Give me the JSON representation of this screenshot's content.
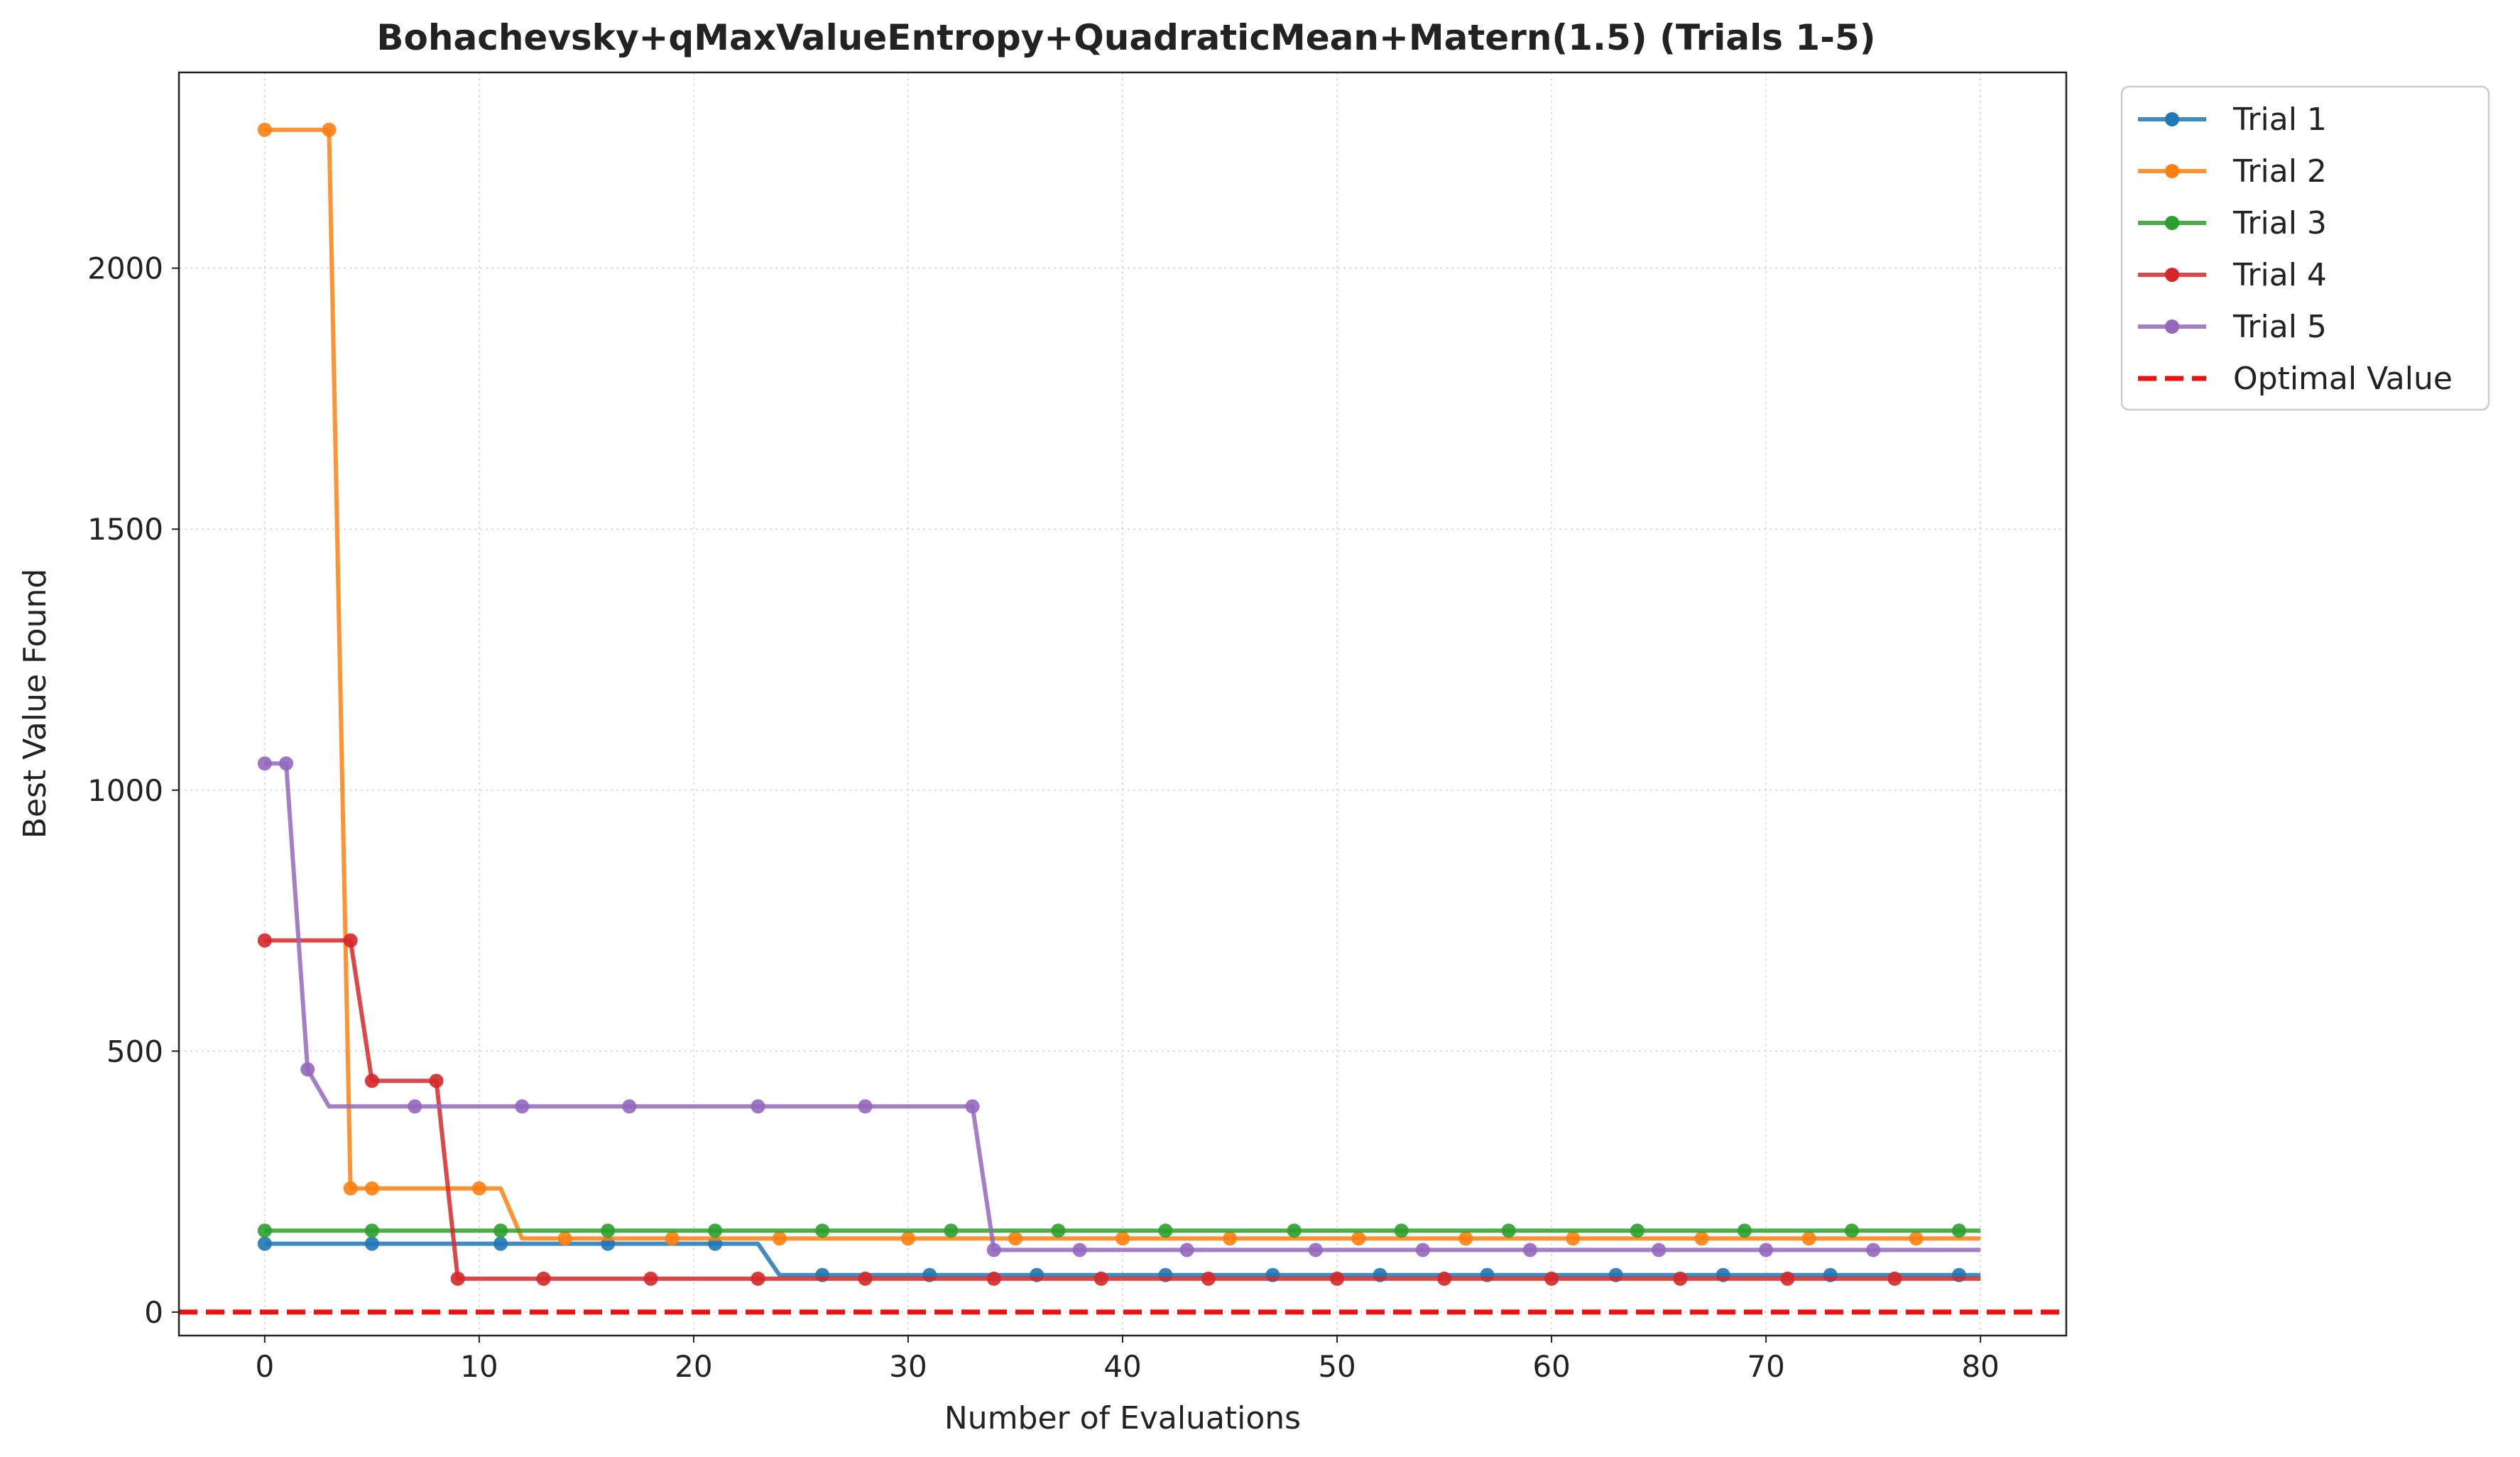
{
  "chart_data": {
    "type": "line",
    "title": "Bohachevsky+qMaxValueEntropy+QuadraticMean+Matern(1.5) (Trials 1-5)",
    "xlabel": "Number of Evaluations",
    "ylabel": "Best Value Found",
    "xlim": [
      -4,
      84
    ],
    "ylim": [
      -45,
      2375
    ],
    "xticks": [
      0,
      10,
      20,
      30,
      40,
      50,
      60,
      70,
      80
    ],
    "yticks": [
      0,
      500,
      1000,
      1500,
      2000
    ],
    "grid": true,
    "legend_position": "outside top-right",
    "series": [
      {
        "name": "Trial 1",
        "color": "#1f77b4",
        "steps": [
          [
            0,
            131
          ],
          [
            23,
            131
          ],
          [
            24,
            71
          ],
          [
            80,
            71
          ]
        ],
        "markers": [
          0,
          5,
          11,
          16,
          21,
          26,
          31,
          36,
          42,
          47,
          52,
          57,
          63,
          68,
          73,
          79
        ]
      },
      {
        "name": "Trial 2",
        "color": "#ff7f0e",
        "steps": [
          [
            0,
            2265
          ],
          [
            3,
            2265
          ],
          [
            4,
            237
          ],
          [
            11,
            237
          ],
          [
            12,
            141
          ],
          [
            80,
            141
          ]
        ],
        "markers": [
          0,
          3,
          4,
          5,
          10,
          14,
          19,
          24,
          30,
          35,
          40,
          45,
          51,
          56,
          61,
          67,
          72,
          77
        ]
      },
      {
        "name": "Trial 3",
        "color": "#2ca02c",
        "steps": [
          [
            0,
            156
          ],
          [
            80,
            156
          ]
        ],
        "markers": [
          0,
          5,
          11,
          16,
          21,
          26,
          32,
          37,
          42,
          48,
          53,
          58,
          64,
          69,
          74,
          79
        ]
      },
      {
        "name": "Trial 4",
        "color": "#d62728",
        "steps": [
          [
            0,
            712
          ],
          [
            4,
            712
          ],
          [
            5,
            443
          ],
          [
            8,
            443
          ],
          [
            9,
            64
          ],
          [
            80,
            64
          ]
        ],
        "markers": [
          0,
          4,
          5,
          8,
          9,
          13,
          18,
          23,
          28,
          34,
          39,
          44,
          50,
          55,
          60,
          66,
          71,
          76
        ]
      },
      {
        "name": "Trial 5",
        "color": "#9467bd",
        "steps": [
          [
            0,
            1051
          ],
          [
            1,
            1051
          ],
          [
            2,
            465
          ],
          [
            3,
            394
          ],
          [
            33,
            394
          ],
          [
            34,
            119
          ],
          [
            80,
            119
          ]
        ],
        "markers": [
          0,
          1,
          2,
          7,
          12,
          17,
          23,
          28,
          33,
          34,
          38,
          43,
          49,
          54,
          59,
          65,
          70,
          75
        ]
      }
    ],
    "reference_lines": [
      {
        "name": "Optimal Value",
        "y": 0,
        "color": "#ee1111",
        "style": "dashed"
      }
    ]
  }
}
